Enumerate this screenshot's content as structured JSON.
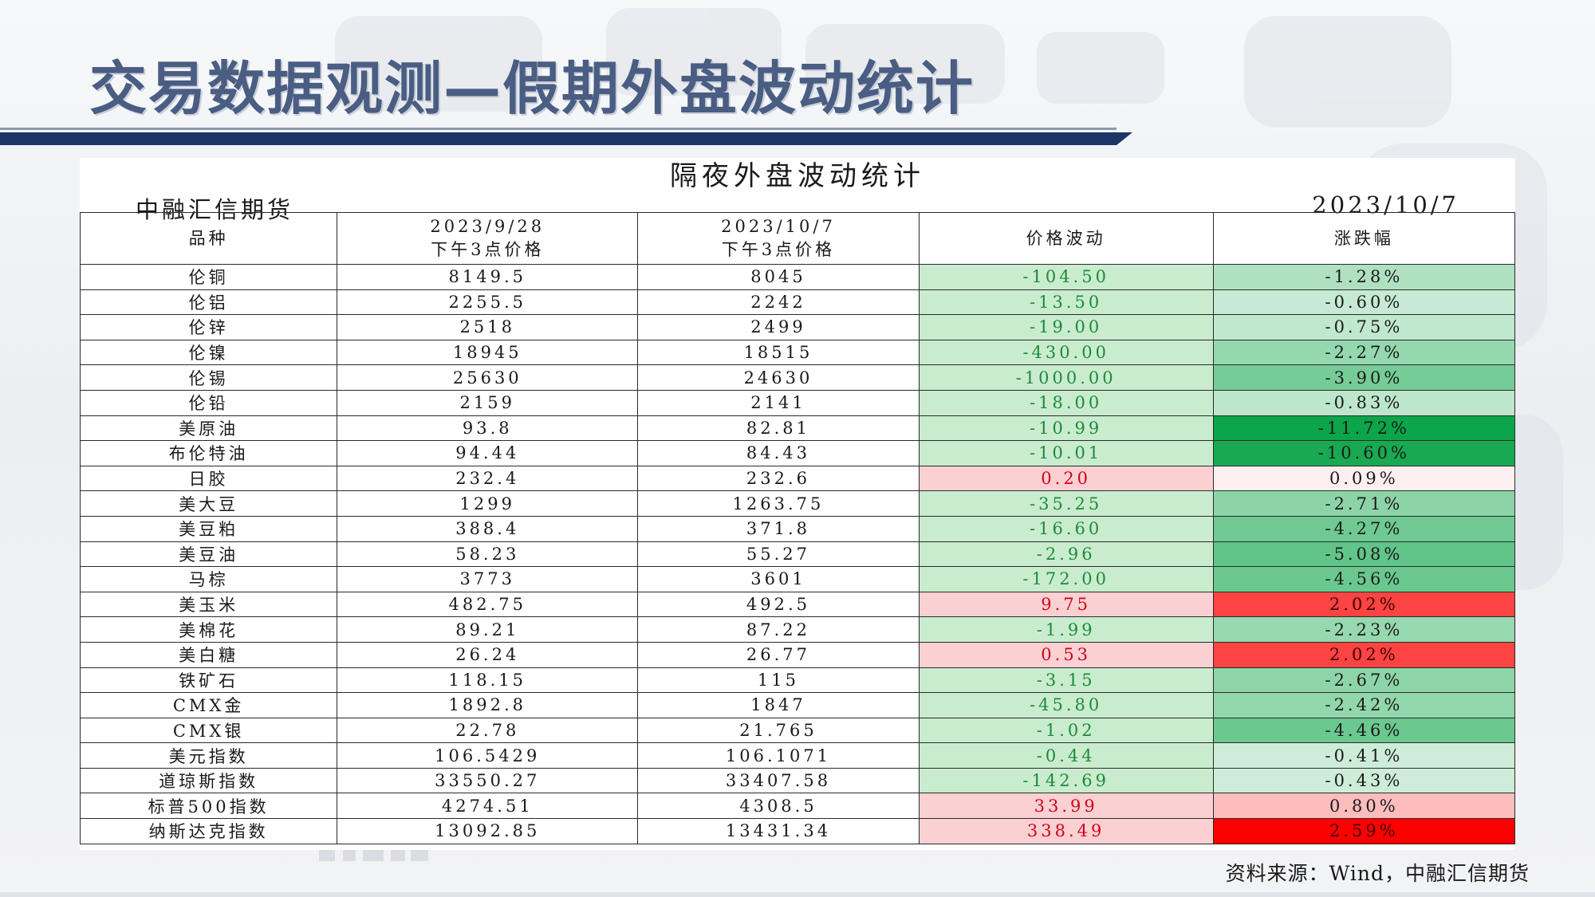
{
  "slide": {
    "title": "交易数据观测—假期外盘波动统计"
  },
  "table": {
    "heading": "隔夜外盘波动统计",
    "org": "中融汇信期货",
    "date": "2023/10/7",
    "headers": {
      "name": "品种",
      "p1_line1": "2023/9/28",
      "p1_line2": "下午3点价格",
      "p2_line1": "2023/10/7",
      "p2_line2": "下午3点价格",
      "change": "价格波动",
      "pct": "涨跌幅"
    },
    "rows": [
      {
        "name": "伦铜",
        "p1": "8149.5",
        "p2": "8045",
        "chg": "-104.50",
        "pct": "-1.28%"
      },
      {
        "name": "伦铝",
        "p1": "2255.5",
        "p2": "2242",
        "chg": "-13.50",
        "pct": "-0.60%"
      },
      {
        "name": "伦锌",
        "p1": "2518",
        "p2": "2499",
        "chg": "-19.00",
        "pct": "-0.75%"
      },
      {
        "name": "伦镍",
        "p1": "18945",
        "p2": "18515",
        "chg": "-430.00",
        "pct": "-2.27%"
      },
      {
        "name": "伦锡",
        "p1": "25630",
        "p2": "24630",
        "chg": "-1000.00",
        "pct": "-3.90%"
      },
      {
        "name": "伦铅",
        "p1": "2159",
        "p2": "2141",
        "chg": "-18.00",
        "pct": "-0.83%"
      },
      {
        "name": "美原油",
        "p1": "93.8",
        "p2": "82.81",
        "chg": "-10.99",
        "pct": "-11.72%"
      },
      {
        "name": "布伦特油",
        "p1": "94.44",
        "p2": "84.43",
        "chg": "-10.01",
        "pct": "-10.60%"
      },
      {
        "name": "日胶",
        "p1": "232.4",
        "p2": "232.6",
        "chg": "0.20",
        "pct": "0.09%"
      },
      {
        "name": "美大豆",
        "p1": "1299",
        "p2": "1263.75",
        "chg": "-35.25",
        "pct": "-2.71%"
      },
      {
        "name": "美豆粕",
        "p1": "388.4",
        "p2": "371.8",
        "chg": "-16.60",
        "pct": "-4.27%"
      },
      {
        "name": "美豆油",
        "p1": "58.23",
        "p2": "55.27",
        "chg": "-2.96",
        "pct": "-5.08%"
      },
      {
        "name": "马棕",
        "p1": "3773",
        "p2": "3601",
        "chg": "-172.00",
        "pct": "-4.56%"
      },
      {
        "name": "美玉米",
        "p1": "482.75",
        "p2": "492.5",
        "chg": "9.75",
        "pct": "2.02%"
      },
      {
        "name": "美棉花",
        "p1": "89.21",
        "p2": "87.22",
        "chg": "-1.99",
        "pct": "-2.23%"
      },
      {
        "name": "美白糖",
        "p1": "26.24",
        "p2": "26.77",
        "chg": "0.53",
        "pct": "2.02%"
      },
      {
        "name": "铁矿石",
        "p1": "118.15",
        "p2": "115",
        "chg": "-3.15",
        "pct": "-2.67%"
      },
      {
        "name": "CMX金",
        "p1": "1892.8",
        "p2": "1847",
        "chg": "-45.80",
        "pct": "-2.42%"
      },
      {
        "name": "CMX银",
        "p1": "22.78",
        "p2": "21.765",
        "chg": "-1.02",
        "pct": "-4.46%"
      },
      {
        "name": "美元指数",
        "p1": "106.5429",
        "p2": "106.1071",
        "chg": "-0.44",
        "pct": "-0.41%"
      },
      {
        "name": "道琼斯指数",
        "p1": "33550.27",
        "p2": "33407.58",
        "chg": "-142.69",
        "pct": "-0.43%"
      },
      {
        "name": "标普500指数",
        "p1": "4274.51",
        "p2": "4308.5",
        "chg": "33.99",
        "pct": "0.80%"
      },
      {
        "name": "纳斯达克指数",
        "p1": "13092.85",
        "p2": "13431.34",
        "chg": "338.49",
        "pct": "2.59%"
      }
    ]
  },
  "source": "资料来源：Wind，中融汇信期货",
  "colors": {
    "title_text": "#4a5d82",
    "title_bar": "#1d3467",
    "rise": "#ff0000",
    "fall": "#00a040",
    "rise_light": "#fbd0d2",
    "fall_light": "#c9eccf"
  }
}
